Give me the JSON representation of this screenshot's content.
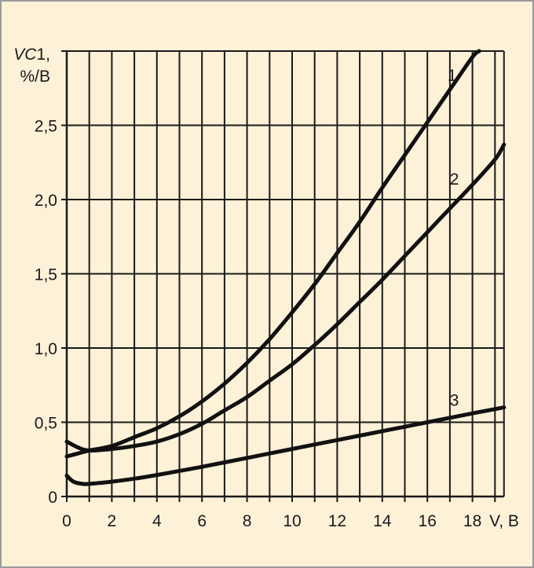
{
  "chart_data": {
    "type": "line",
    "ylabel_line1_italic": "VC",
    "ylabel_line1_rest": "1,",
    "ylabel_line2": "%/B",
    "xlabel": "V, B",
    "xlim": [
      0,
      19.4
    ],
    "ylim": [
      0,
      3.0
    ],
    "grid": true,
    "x_ticks": [
      0,
      1,
      2,
      3,
      4,
      5,
      6,
      7,
      8,
      9,
      10,
      11,
      12,
      13,
      14,
      15,
      16,
      17,
      18,
      19
    ],
    "x_tick_labels": [
      {
        "x": 0,
        "label": "0"
      },
      {
        "x": 2,
        "label": "2"
      },
      {
        "x": 4,
        "label": "4"
      },
      {
        "x": 6,
        "label": "6"
      },
      {
        "x": 8,
        "label": "8"
      },
      {
        "x": 10,
        "label": "10"
      },
      {
        "x": 12,
        "label": "12"
      },
      {
        "x": 14,
        "label": "14"
      },
      {
        "x": 16,
        "label": "16"
      },
      {
        "x": 18,
        "label": "18"
      }
    ],
    "y_ticks": [
      0.5,
      1.0,
      1.5,
      2.0,
      2.5,
      3.0
    ],
    "y_tick_labels": [
      {
        "y": 0,
        "label": "0"
      },
      {
        "y": 0.5,
        "label": "0,5"
      },
      {
        "y": 1.0,
        "label": "1,0"
      },
      {
        "y": 1.5,
        "label": "1,5"
      },
      {
        "y": 2.0,
        "label": "2,0"
      },
      {
        "y": 2.5,
        "label": "2,5"
      }
    ],
    "series": [
      {
        "name": "1",
        "x": [
          0,
          0.5,
          1,
          2,
          3,
          4,
          5,
          6,
          7,
          8,
          9,
          10,
          11,
          12,
          13,
          14,
          15,
          16,
          17,
          18,
          18.3
        ],
        "y": [
          0.27,
          0.29,
          0.31,
          0.34,
          0.4,
          0.46,
          0.54,
          0.64,
          0.76,
          0.9,
          1.06,
          1.24,
          1.43,
          1.64,
          1.85,
          2.08,
          2.3,
          2.52,
          2.74,
          2.96,
          3.0
        ]
      },
      {
        "name": "2",
        "x": [
          0,
          0.5,
          1,
          2,
          3,
          4,
          5,
          6,
          7,
          8,
          9,
          10,
          11,
          12,
          13,
          14,
          15,
          16,
          17,
          18,
          19,
          19.4
        ],
        "y": [
          0.37,
          0.33,
          0.31,
          0.32,
          0.34,
          0.37,
          0.42,
          0.49,
          0.58,
          0.67,
          0.78,
          0.89,
          1.02,
          1.16,
          1.31,
          1.46,
          1.62,
          1.78,
          1.94,
          2.1,
          2.27,
          2.37
        ]
      },
      {
        "name": "3",
        "x": [
          0,
          0.3,
          0.7,
          1,
          2,
          3,
          4,
          6,
          8,
          10,
          12,
          14,
          16,
          18,
          19.4
        ],
        "y": [
          0.14,
          0.1,
          0.085,
          0.085,
          0.1,
          0.12,
          0.145,
          0.2,
          0.26,
          0.32,
          0.38,
          0.44,
          0.5,
          0.56,
          0.6
        ]
      }
    ]
  }
}
